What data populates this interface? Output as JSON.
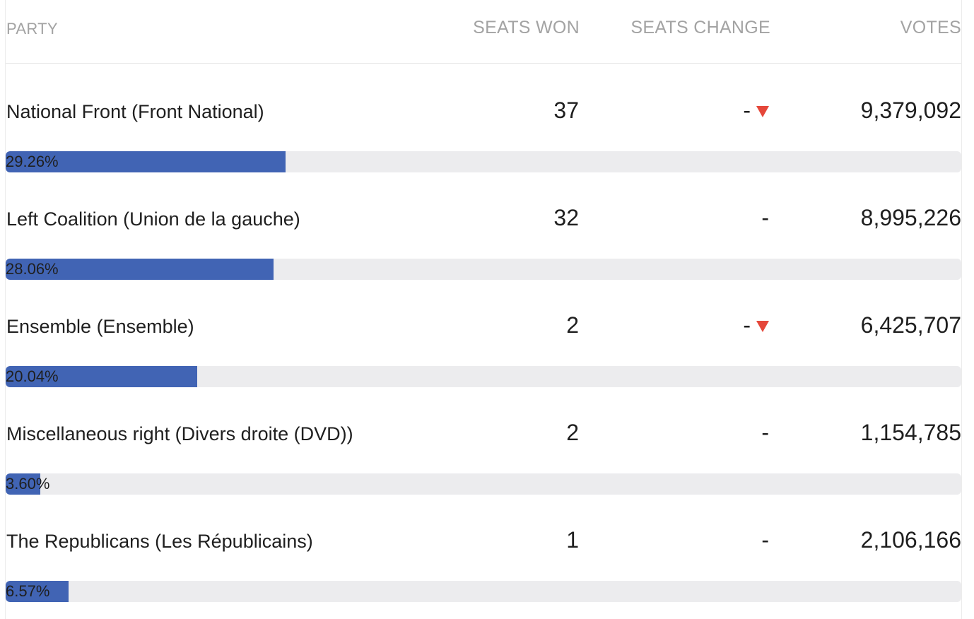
{
  "header": {
    "party": "PARTY",
    "seats_won": "SEATS WON",
    "seats_change": "SEATS CHANGE",
    "votes": "VOTES"
  },
  "colors": {
    "bar_fill": "#4164b4",
    "bar_track": "#ececee",
    "down_arrow": "#e5473a"
  },
  "rows": [
    {
      "party": "National Front (Front National)",
      "seats": "37",
      "change": "-",
      "trend": "down",
      "votes": "9,379,092",
      "share_label": "29.26%",
      "share": 29.26
    },
    {
      "party": "Left Coalition (Union de la gauche)",
      "seats": "32",
      "change": "-",
      "trend": "none",
      "votes": "8,995,226",
      "share_label": "28.06%",
      "share": 28.06
    },
    {
      "party": "Ensemble (Ensemble)",
      "seats": "2",
      "change": "-",
      "trend": "down",
      "votes": "6,425,707",
      "share_label": "20.04%",
      "share": 20.04
    },
    {
      "party": "Miscellaneous right (Divers droite (DVD))",
      "seats": "2",
      "change": "-",
      "trend": "none",
      "votes": "1,154,785",
      "share_label": "3.60%",
      "share": 3.6
    },
    {
      "party": "The Republicans (Les Républicains)",
      "seats": "1",
      "change": "-",
      "trend": "none",
      "votes": "2,106,166",
      "share_label": "6.57%",
      "share": 6.57
    }
  ]
}
